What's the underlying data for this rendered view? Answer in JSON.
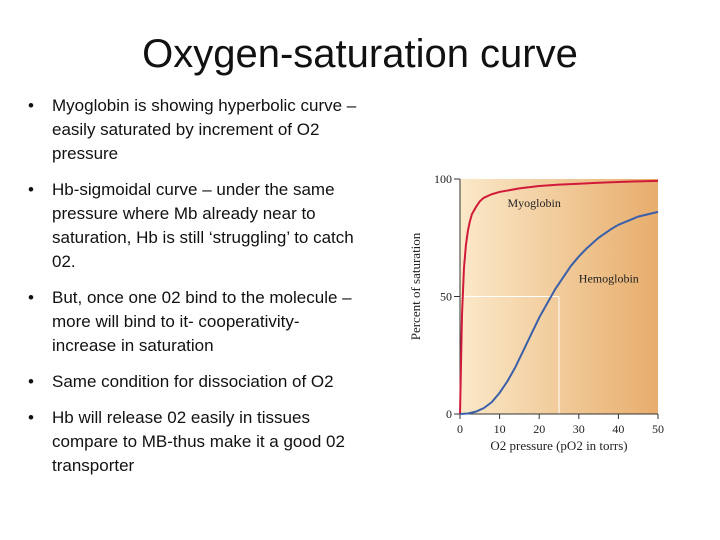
{
  "slide": {
    "title": "Oxygen-saturation curve",
    "bullets": [
      "Myoglobin is showing hyperbolic curve – easily saturated by increment of O2 pressure",
      "Hb-sigmoidal curve – under the same pressure where Mb already near to saturation, Hb is still ‘struggling’ to catch 02.",
      "But, once one 02 bind to the molecule – more will bind to it- cooperativity- increase in saturation",
      "Same condition for dissociation of O2",
      "Hb will release 02 easily in tissues compare to MB-thus make it a good 02 transporter"
    ],
    "bullet_glyph": "•"
  },
  "chart_data": {
    "type": "line",
    "title": "",
    "xlabel": "O2 pressure (pO2 in torrs)",
    "ylabel": "Percent of saturation",
    "xlim": [
      0,
      50
    ],
    "ylim": [
      0,
      100
    ],
    "xticks": [
      "0",
      "10",
      "20",
      "30",
      "40",
      "50"
    ],
    "yticks": [
      "0",
      "50",
      "100"
    ],
    "background_gradient": [
      "#fbe9c9",
      "#e7ad6c"
    ],
    "reference_line": {
      "x": 25,
      "y": 50
    },
    "series": [
      {
        "name": "Myoglobin",
        "color": "#d11a3a",
        "x": [
          0,
          0.5,
          1,
          1.5,
          2,
          2.5,
          3,
          4,
          5,
          6,
          8,
          10,
          15,
          20,
          25,
          30,
          35,
          40,
          45,
          50
        ],
        "y": [
          0,
          42,
          62,
          72,
          78,
          82,
          85,
          88,
          90.5,
          92,
          93.5,
          94.5,
          96,
          97,
          97.6,
          98,
          98.4,
          98.7,
          99,
          99.2
        ]
      },
      {
        "name": "Hemoglobin",
        "color": "#3b5fa8",
        "x": [
          0,
          2,
          4,
          6,
          8,
          10,
          12,
          14,
          16,
          18,
          20,
          22,
          24,
          26,
          28,
          30,
          32,
          35,
          38,
          40,
          45,
          50
        ],
        "y": [
          0,
          0.2,
          1,
          2.5,
          5,
          9,
          14,
          20,
          27,
          34,
          41,
          47,
          53,
          58,
          63,
          67,
          70.5,
          75,
          78.5,
          80.5,
          84,
          86
        ]
      }
    ]
  }
}
